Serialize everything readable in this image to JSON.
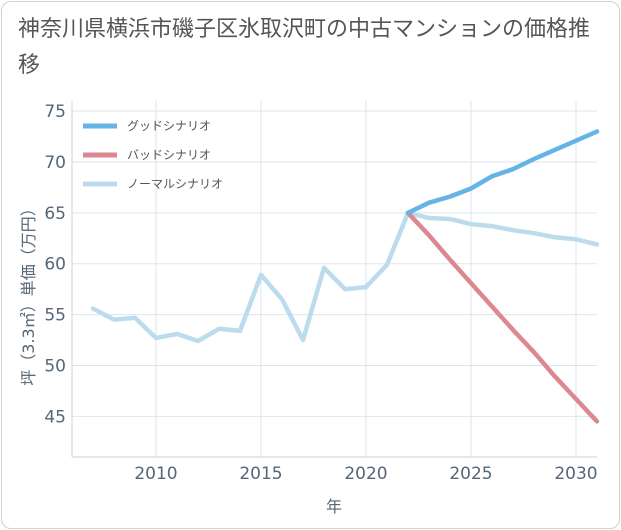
{
  "title": "神奈川県横浜市磯子区氷取沢町の中古マンションの価格推移",
  "chart_data": {
    "type": "line",
    "title": "神奈川県横浜市磯子区氷取沢町の中古マンションの価格推移",
    "xlabel": "年",
    "ylabel": "坪（3.3㎡）単価（万円）",
    "xlim": [
      2006,
      2031
    ],
    "ylim": [
      41,
      76
    ],
    "xticks": [
      2010,
      2015,
      2020,
      2025,
      2030
    ],
    "yticks": [
      45,
      50,
      55,
      60,
      65,
      70,
      75
    ],
    "grid": true,
    "legend_position": "top-left",
    "series": [
      {
        "name": "グッドシナリオ",
        "color": "#66b3e6",
        "x": [
          2022,
          2023,
          2024,
          2025,
          2026,
          2027,
          2028,
          2029,
          2030,
          2031
        ],
        "values": [
          65.0,
          66.0,
          66.6,
          67.4,
          68.6,
          69.3,
          70.3,
          71.2,
          72.1,
          73.0
        ]
      },
      {
        "name": "バッドシナリオ",
        "color": "#dd8890",
        "x": [
          2022,
          2023,
          2024,
          2025,
          2026,
          2027,
          2028,
          2029,
          2030,
          2031
        ],
        "values": [
          65.0,
          62.8,
          60.4,
          58.1,
          55.8,
          53.5,
          51.3,
          48.9,
          46.7,
          44.5
        ]
      },
      {
        "name": "ノーマルシナリオ",
        "color": "#bcdcee",
        "x": [
          2007,
          2008,
          2009,
          2010,
          2011,
          2012,
          2013,
          2014,
          2015,
          2016,
          2017,
          2018,
          2019,
          2020,
          2021,
          2022,
          2023,
          2024,
          2025,
          2026,
          2027,
          2028,
          2029,
          2030,
          2031
        ],
        "values": [
          55.6,
          54.5,
          54.7,
          52.7,
          53.1,
          52.4,
          53.6,
          53.4,
          58.9,
          56.5,
          52.5,
          59.6,
          57.5,
          57.7,
          59.9,
          65.0,
          64.5,
          64.4,
          63.9,
          63.7,
          63.3,
          63.0,
          62.6,
          62.4,
          61.9
        ]
      }
    ]
  }
}
